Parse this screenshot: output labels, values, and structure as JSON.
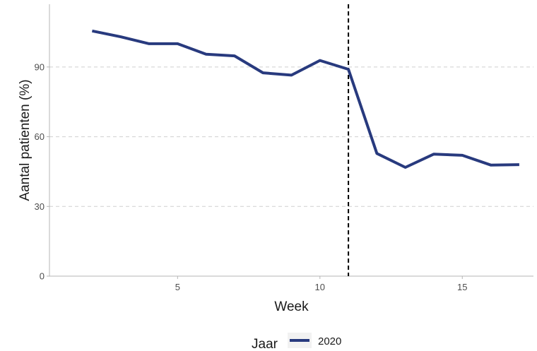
{
  "chart_data": {
    "type": "line",
    "title": "",
    "xlabel": "Week",
    "ylabel": "Aantal patienten (%)",
    "xlim": [
      0.5,
      17.5
    ],
    "ylim": [
      0,
      117
    ],
    "x_ticks": [
      5,
      10,
      15
    ],
    "y_ticks": [
      0,
      30,
      60,
      90
    ],
    "grid": "horizontal-dashed",
    "reference_line": {
      "x": 11,
      "style": "dashed",
      "color": "#000000"
    },
    "legend": {
      "title": "Jaar",
      "position": "bottom"
    },
    "series": [
      {
        "name": "2020",
        "color": "#283a7e",
        "x": [
          2,
          3,
          4,
          5,
          6,
          7,
          8,
          9,
          10,
          11,
          12,
          13,
          14,
          15,
          16,
          17
        ],
        "y": [
          105.5,
          103,
          100,
          100,
          95.5,
          94.8,
          87.5,
          86.5,
          92.8,
          89,
          52.8,
          46.8,
          52.5,
          52,
          47.8,
          48
        ]
      }
    ]
  }
}
